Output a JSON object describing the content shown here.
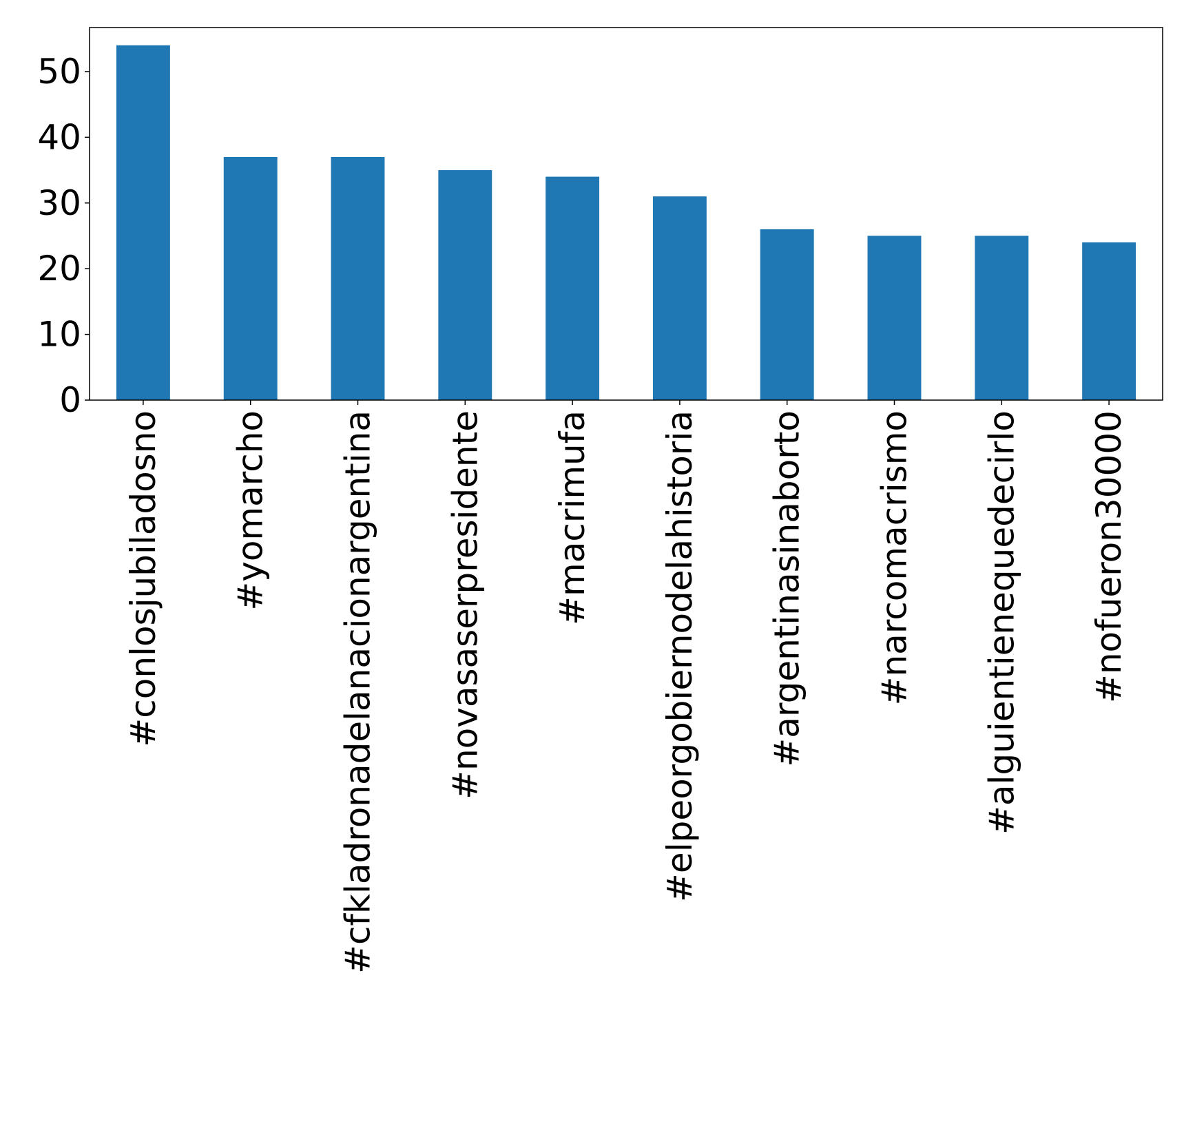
{
  "chart_data": {
    "type": "bar",
    "title": "",
    "xlabel": "",
    "ylabel": "",
    "categories": [
      "#conlosjubiladosno",
      "#yomarcho",
      "#cfkladronadelanacionargentina",
      "#novasaserpresidente",
      "#macrimufa",
      "#elpeorgobiernodelahistoria",
      "#argentinasinaborto",
      "#narcomacrismo",
      "#alguientienequedecirlo",
      "#nofueron30000"
    ],
    "values": [
      54,
      37,
      37,
      35,
      34,
      31,
      26,
      25,
      25,
      24
    ],
    "ylim": [
      0,
      56.7
    ],
    "yticks": [
      0,
      10,
      20,
      30,
      40,
      50
    ],
    "grid": false,
    "legend": "none",
    "colors": {
      "bar": "#1f77b4",
      "axis": "#000000",
      "background": "#ffffff"
    }
  }
}
